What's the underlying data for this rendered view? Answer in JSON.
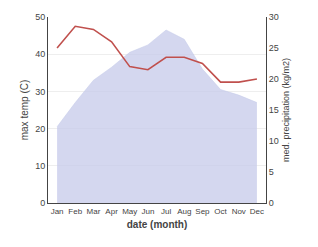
{
  "chart_data": {
    "type": "line",
    "xlabel": "date (month)",
    "ylabel": "max temp (C)",
    "y2label": "med. precipitation (kg/m2)",
    "categories": [
      "Jan",
      "Feb",
      "Mar",
      "Apr",
      "May",
      "Jun",
      "Jul",
      "Aug",
      "Sep",
      "Oct",
      "Nov",
      "Dec"
    ],
    "series": [
      {
        "type": "area",
        "color": "#c5cae9",
        "values": [
          20.5,
          27.0,
          33.0,
          36.5,
          40.5,
          42.5,
          46.5,
          44.0,
          36.0,
          30.5,
          29.0,
          27.0
        ]
      },
      {
        "type": "line",
        "color": "#c0504d",
        "axis": "y2",
        "values": [
          25.0,
          28.5,
          28.0,
          26.0,
          22.0,
          21.5,
          23.5,
          23.5,
          22.5,
          19.5,
          19.5,
          20.0
        ]
      }
    ],
    "ylim": [
      0,
      50
    ],
    "yticks": [
      0,
      10,
      20,
      30,
      40,
      50
    ],
    "y2lim": [
      0,
      30
    ],
    "y2ticks": [
      0,
      5,
      10,
      15,
      20,
      25,
      30
    ],
    "grid": true
  }
}
